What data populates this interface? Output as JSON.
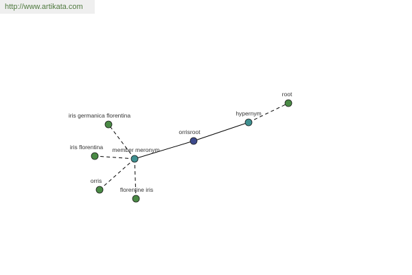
{
  "watermark": "http://www.artikata.com",
  "colors": {
    "center": "#3d4a8c",
    "relation": "#3f9090",
    "leaf": "#4a8a45"
  },
  "nodes": [
    {
      "id": "orrisroot",
      "label": "orrisroot",
      "kind": "center"
    },
    {
      "id": "member_meronym",
      "label": "member meronym",
      "kind": "relation"
    },
    {
      "id": "hypernym",
      "label": "hypernym",
      "kind": "relation"
    },
    {
      "id": "root",
      "label": "root",
      "kind": "leaf"
    },
    {
      "id": "iris_germanica_florentina",
      "label": "iris germanica florentina",
      "kind": "leaf"
    },
    {
      "id": "iris_florentina",
      "label": "iris florentina",
      "kind": "leaf"
    },
    {
      "id": "orris",
      "label": "orris",
      "kind": "leaf"
    },
    {
      "id": "florentine_iris",
      "label": "florentine iris",
      "kind": "leaf"
    }
  ],
  "edges": [
    {
      "from": "orrisroot",
      "to": "member_meronym",
      "style": "solid"
    },
    {
      "from": "orrisroot",
      "to": "hypernym",
      "style": "solid"
    },
    {
      "from": "hypernym",
      "to": "root",
      "style": "dashed"
    },
    {
      "from": "member_meronym",
      "to": "iris_germanica_florentina",
      "style": "dashed"
    },
    {
      "from": "member_meronym",
      "to": "iris_florentina",
      "style": "dashed"
    },
    {
      "from": "member_meronym",
      "to": "orris",
      "style": "dashed"
    },
    {
      "from": "member_meronym",
      "to": "florentine_iris",
      "style": "dashed"
    }
  ]
}
